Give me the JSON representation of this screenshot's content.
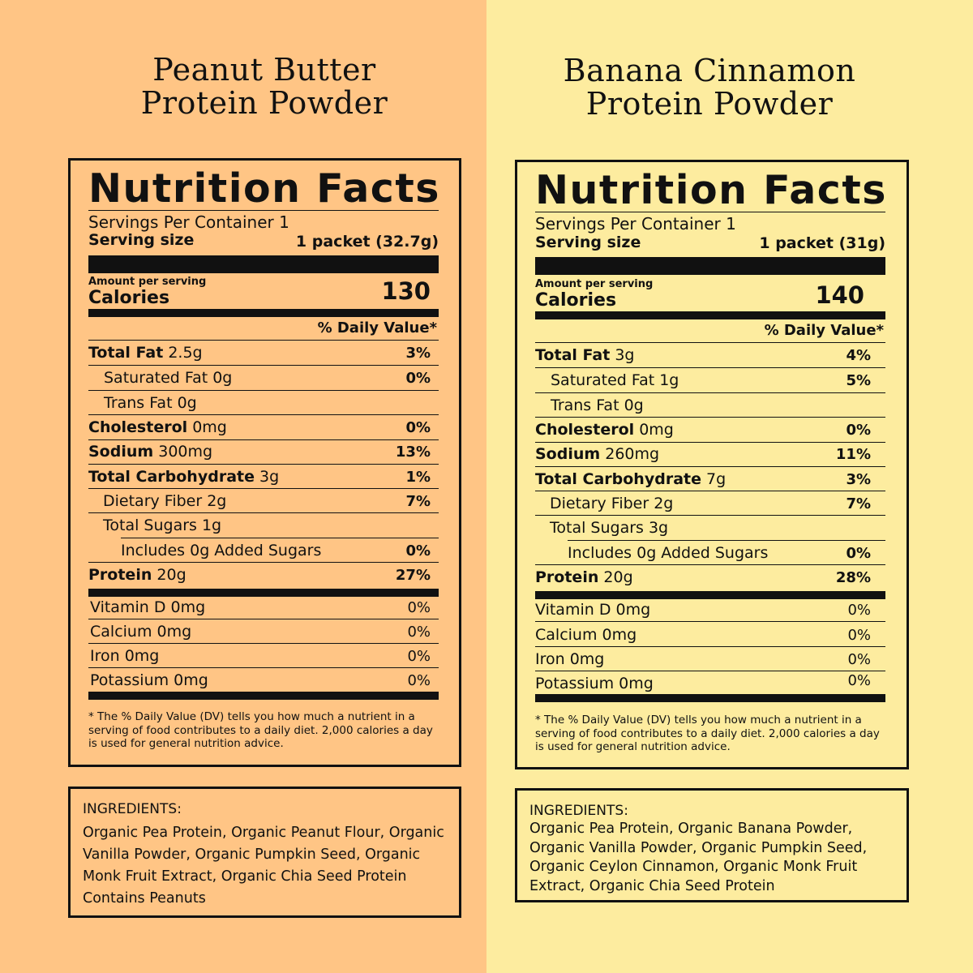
{
  "products": [
    {
      "title_line1": "Peanut Butter",
      "title_line2": "Protein Powder",
      "facts": {
        "heading": "Nutrition Facts",
        "servings": "Servings Per Container 1",
        "serving_size_label": "Serving size",
        "serving_size_value": "1 packet (32.7g)",
        "amount_per_serving": "Amount per serving",
        "calories_label": "Calories",
        "calories_value": "130",
        "dv_header": "% Daily Value*",
        "rows": [
          {
            "name": "Total Fat",
            "amount": "2.5g",
            "dv": "3%"
          },
          {
            "name": "Saturated Fat 0g",
            "amount": "",
            "dv": "0%"
          },
          {
            "name": "Trans Fat 0g",
            "amount": "",
            "dv": ""
          },
          {
            "name": "Cholesterol",
            "amount": "0mg",
            "dv": "0%"
          },
          {
            "name": "Sodium",
            "amount": "300mg",
            "dv": "13%"
          },
          {
            "name": "Total Carbohydrate",
            "amount": "3g",
            "dv": "1%"
          },
          {
            "name": "Dietary Fiber 2g",
            "amount": "",
            "dv": "7%"
          },
          {
            "name": "Total Sugars 1g",
            "amount": "",
            "dv": ""
          },
          {
            "name": "Includes 0g Added Sugars",
            "amount": "",
            "dv": "0%"
          },
          {
            "name": "Protein",
            "amount": "20g",
            "dv": "27%"
          }
        ],
        "vitamins": [
          {
            "name": "Vitamin D 0mg",
            "dv": "0%"
          },
          {
            "name": "Calcium 0mg",
            "dv": "0%"
          },
          {
            "name": "Iron 0mg",
            "dv": "0%"
          },
          {
            "name": "Potassium 0mg",
            "dv": "0%"
          }
        ],
        "footnote": "* The % Daily Value (DV) tells you how much a nutrient in a serving of food contributes to a daily diet. 2,000 calories a day is used for general nutrition advice."
      },
      "ingredients_heading": "INGREDIENTS:",
      "ingredients_lines": [
        "Organic Pea Protein, Organic Peanut Flour, Organic",
        "Vanilla Powder, Organic Pumpkin Seed, Organic",
        "Monk Fruit Extract, Organic Chia Seed Protein",
        "Contains Peanuts"
      ]
    },
    {
      "title_line1": "Banana Cinnamon",
      "title_line2": "Protein Powder",
      "facts": {
        "heading": "Nutrition Facts",
        "servings": "Servings Per Container 1",
        "serving_size_label": "Serving size",
        "serving_size_value": "1 packet (31g)",
        "amount_per_serving": "Amount per serving",
        "calories_label": "Calories",
        "calories_value": "140",
        "dv_header": "% Daily Value*",
        "rows": [
          {
            "name": "Total Fat",
            "amount": "3g",
            "dv": "4%"
          },
          {
            "name": "Saturated Fat 1g",
            "amount": "",
            "dv": "5%"
          },
          {
            "name": "Trans Fat 0g",
            "amount": "",
            "dv": ""
          },
          {
            "name": "Cholesterol",
            "amount": "0mg",
            "dv": "0%"
          },
          {
            "name": "Sodium",
            "amount": "260mg",
            "dv": "11%"
          },
          {
            "name": "Total Carbohydrate",
            "amount": "7g",
            "dv": "3%"
          },
          {
            "name": "Dietary Fiber 2g",
            "amount": "",
            "dv": "7%"
          },
          {
            "name": "Total Sugars 3g",
            "amount": "",
            "dv": ""
          },
          {
            "name": "Includes 0g Added Sugars",
            "amount": "",
            "dv": "0%"
          },
          {
            "name": "Protein",
            "amount": "20g",
            "dv": "28%"
          }
        ],
        "vitamins": [
          {
            "name": "Vitamin D 0mg",
            "dv": "0%"
          },
          {
            "name": "Calcium 0mg",
            "dv": "0%"
          },
          {
            "name": "Iron 0mg",
            "dv": "0%"
          },
          {
            "name": "Potassium 0mg",
            "dv": "0%"
          }
        ],
        "footnote": "* The % Daily Value (DV) tells you how much a nutrient in a serving of food contributes to a daily diet. 2,000 calories a day is used for general nutrition advice."
      },
      "ingredients_heading": "INGREDIENTS:",
      "ingredients_lines": [
        "Organic Pea Protein, Organic Banana Powder,",
        "Organic Vanilla Powder, Organic Pumpkin Seed,",
        "Organic Ceylon Cinnamon, Organic Monk Fruit",
        "Extract, Organic Chia Seed Protein"
      ]
    }
  ]
}
